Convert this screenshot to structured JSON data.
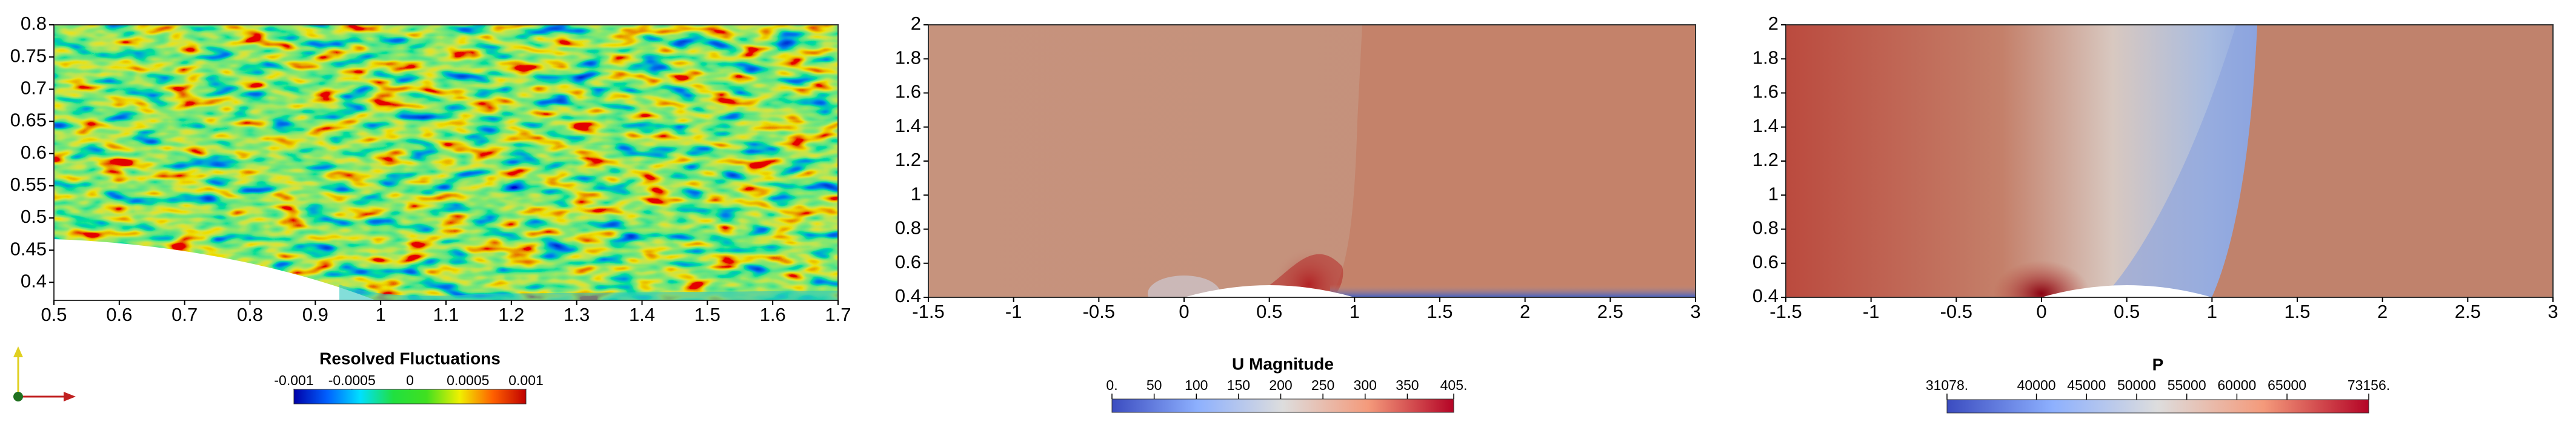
{
  "chart_data": [
    {
      "type": "contour",
      "xlim": [
        0.5,
        1.7
      ],
      "ylim": [
        0.372,
        0.8
      ],
      "xticks": [
        0.5,
        0.6,
        0.7,
        0.8,
        0.9,
        1,
        1.1,
        1.2,
        1.3,
        1.4,
        1.5,
        1.6,
        1.7
      ],
      "yticks": [
        0.4,
        0.45,
        0.5,
        0.55,
        0.6,
        0.65,
        0.7,
        0.75,
        0.8
      ],
      "colorbar": {
        "title": "Resolved Fluctuations",
        "range": [
          -0.001,
          0.001
        ],
        "ticks": [
          -0.001,
          -0.0005,
          0,
          0.0005,
          0.001
        ],
        "colormap": [
          "#0000a8",
          "#0060ff",
          "#00e0ff",
          "#20e040",
          "#40e020",
          "#f0f000",
          "#ff6000",
          "#c00000"
        ]
      }
    },
    {
      "type": "contour",
      "xlim": [
        -1.5,
        3
      ],
      "ylim": [
        0.4,
        2
      ],
      "xticks": [
        -1.5,
        -1,
        -0.5,
        0,
        0.5,
        1,
        1.5,
        2,
        2.5,
        3
      ],
      "yticks": [
        0.4,
        0.6,
        0.8,
        1,
        1.2,
        1.4,
        1.6,
        1.8,
        2
      ],
      "colorbar": {
        "title": "U Magnitude",
        "range": [
          0,
          405
        ],
        "ticks": [
          {
            "value": 0,
            "label": "0."
          },
          50,
          100,
          150,
          200,
          250,
          300,
          350,
          {
            "value": 405,
            "label": "405."
          }
        ],
        "colormap": [
          "#3b4cc0",
          "#8db0fe",
          "#dddddd",
          "#f49a7b",
          "#b40426"
        ]
      }
    },
    {
      "type": "contour",
      "xlim": [
        -1.5,
        3
      ],
      "ylim": [
        0.4,
        2
      ],
      "xticks": [
        -1.5,
        -1,
        -0.5,
        0,
        0.5,
        1,
        1.5,
        2,
        2.5,
        3
      ],
      "yticks": [
        0.4,
        0.6,
        0.8,
        1,
        1.2,
        1.4,
        1.6,
        1.8,
        2
      ],
      "colorbar": {
        "title": "P",
        "range": [
          31078,
          73156
        ],
        "ticks": [
          {
            "value": 31078,
            "label": "31078."
          },
          40000,
          45000,
          50000,
          55000,
          60000,
          65000,
          {
            "value": 73156,
            "label": "73156."
          }
        ],
        "colormap": [
          "#3b4cc0",
          "#8db0fe",
          "#dddddd",
          "#f49a7b",
          "#b40426"
        ]
      }
    }
  ]
}
